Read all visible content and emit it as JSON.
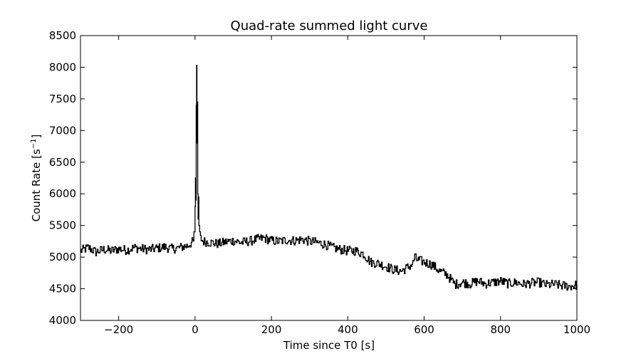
{
  "chart_data": {
    "type": "line",
    "title": "Quad-rate summed light curve",
    "xlabel": "Time since T0 [s]",
    "ylabel": "Count Rate [s",
    "ylabel_sup": "−1",
    "ylabel_end": "]",
    "xlim": [
      -300,
      1000
    ],
    "ylim": [
      4000,
      8500
    ],
    "xticks": [
      -200,
      0,
      200,
      400,
      600,
      800,
      1000
    ],
    "xtick_labels": [
      "−200",
      "0",
      "200",
      "400",
      "600",
      "800",
      "1000"
    ],
    "yticks": [
      4000,
      4500,
      5000,
      5500,
      6000,
      6500,
      7000,
      7500,
      8000,
      8500
    ],
    "ytick_labels": [
      "4000",
      "4500",
      "5000",
      "5500",
      "6000",
      "6500",
      "7000",
      "7500",
      "8000",
      "8500"
    ],
    "grid": false,
    "line_color": "#000000",
    "series": [
      {
        "x": [
          -300,
          -280,
          -260,
          -240,
          -220,
          -200,
          -180,
          -160,
          -140,
          -120,
          -100,
          -80,
          -60,
          -40,
          -20,
          -5,
          -2,
          0,
          1,
          2,
          3,
          4,
          5,
          6,
          7,
          8,
          9,
          10,
          12,
          14,
          20,
          40,
          60,
          80,
          100,
          120,
          140,
          160,
          180,
          200,
          220,
          240,
          260,
          280,
          300,
          320,
          340,
          360,
          380,
          400,
          420,
          440,
          460,
          480,
          500,
          520,
          540,
          560,
          570,
          575,
          580,
          600,
          620,
          640,
          660,
          670,
          680,
          700,
          720,
          740,
          760,
          780,
          800,
          820,
          840,
          860,
          880,
          900,
          920,
          940,
          960,
          980,
          1000
        ],
        "y": [
          5100,
          5150,
          5080,
          5120,
          5100,
          5130,
          5110,
          5150,
          5130,
          5120,
          5140,
          5160,
          5130,
          5150,
          5180,
          5250,
          5400,
          5800,
          6250,
          5900,
          7400,
          8030,
          6800,
          7450,
          6000,
          5600,
          5950,
          5500,
          5400,
          5300,
          5250,
          5230,
          5210,
          5240,
          5260,
          5230,
          5250,
          5280,
          5300,
          5260,
          5250,
          5270,
          5260,
          5280,
          5250,
          5230,
          5200,
          5150,
          5120,
          5100,
          5100,
          5050,
          4920,
          4900,
          4850,
          4800,
          4780,
          4850,
          4900,
          5000,
          4960,
          4920,
          4880,
          4780,
          4720,
          4640,
          4570,
          4600,
          4580,
          4620,
          4580,
          4600,
          4620,
          4580,
          4600,
          4570,
          4590,
          4600,
          4560,
          4570,
          4550,
          4540,
          4560
        ]
      }
    ]
  }
}
